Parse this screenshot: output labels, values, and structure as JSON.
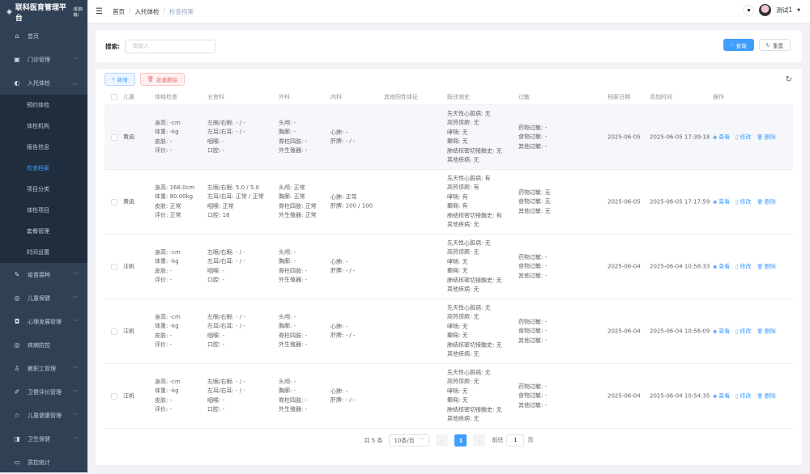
{
  "app": {
    "title": "联科医育管理平台",
    "subtitle": "(机构端)"
  },
  "sidebar": {
    "items": [
      {
        "label": "首页",
        "icon": "home-icon",
        "glyph": "⌂"
      },
      {
        "label": "门诊管理",
        "icon": "clinic-icon",
        "glyph": "▣",
        "chev": "﹀"
      }
    ],
    "open": {
      "label": "入托体检",
      "icon": "headset-icon",
      "glyph": "◐",
      "chev": "︿",
      "children": [
        "预约体检",
        "体检机构",
        "报告信息",
        "检查档案",
        "项目分类",
        "体检项目",
        "套餐管理",
        "时间设置"
      ],
      "active": 3
    },
    "rest": [
      {
        "label": "疫苗接种",
        "icon": "syringe-icon",
        "glyph": "✎",
        "chev": "﹀"
      },
      {
        "label": "儿童保健",
        "icon": "lifebuoy-icon",
        "glyph": "◎",
        "chev": "﹀"
      },
      {
        "label": "心理发展管理",
        "icon": "bag-icon",
        "glyph": "◘",
        "chev": "﹀"
      },
      {
        "label": "疾病防控",
        "icon": "shield-icon",
        "glyph": "◎"
      },
      {
        "label": "教职工管理",
        "icon": "user-icon",
        "glyph": "♙",
        "chev": "﹀"
      },
      {
        "label": "卫健评价管理",
        "icon": "pen-icon",
        "glyph": "✐",
        "chev": "﹀"
      },
      {
        "label": "儿童健康管理",
        "icon": "star-icon",
        "glyph": "☆",
        "chev": "﹀"
      },
      {
        "label": "卫生保健",
        "icon": "cup-icon",
        "glyph": "◨",
        "chev": "﹀"
      },
      {
        "label": "质控统计",
        "icon": "monitor-icon",
        "glyph": "▭"
      }
    ]
  },
  "breadcrumb": [
    "首页",
    "入托体检",
    "检查档案"
  ],
  "user": {
    "name": "测试1"
  },
  "search": {
    "label": "搜索:",
    "placeholder": "请输入",
    "query": "查询",
    "reset": "重置"
  },
  "toolbar": {
    "add": "新增",
    "batch_delete": "批量删除"
  },
  "table": {
    "headers": [
      "儿童",
      "体格检查",
      "五官科",
      "外科",
      "内科",
      "其他阳性体征",
      "既往病史",
      "过敏",
      "档案日期",
      "添加时间",
      "操作"
    ],
    "actions": [
      "查看",
      "修改",
      "删除"
    ],
    "rows": [
      {
        "child": "黄函",
        "physical": [
          "身高: -cm",
          "体重: -kg",
          "皮肤: -",
          "评价: -"
        ],
        "ent": [
          "左眼/右眼: - / -",
          "左耳/右耳: - / -",
          "咽喉: -",
          "口腔: -"
        ],
        "surgery": [
          "头颅: -",
          "胸廓: -",
          "脊柱四肢: -",
          "外生殖器: -"
        ],
        "internal": [
          "心肺: -",
          "肝脾: - / -"
        ],
        "other": "",
        "history": [
          "先天性心脏病: 无",
          "高热惊厥: 无",
          "哮喘: 无",
          "癫痫: 无",
          "肺结核密切接触史: 无",
          "其他疾病: 无"
        ],
        "allergy": [
          "药物过敏: -",
          "食物过敏: -",
          "其他过敏: -"
        ],
        "date": "2025-06-05",
        "added": "2025-06-05 17:39:18"
      },
      {
        "child": "黄函",
        "physical": [
          "身高: 168.0cm",
          "体重: 80.00kg",
          "皮肤: 正常",
          "评价: 正常"
        ],
        "ent": [
          "左眼/右眼: 5.0 / 5.0",
          "左耳/右耳: 正常 / 正常",
          "咽喉: 正常",
          "口腔: 18"
        ],
        "surgery": [
          "头颅: 正常",
          "胸廓: 正常",
          "脊柱四肢: 正常",
          "外生殖器: 正常"
        ],
        "internal": [
          "心肺: 正常",
          "肝脾: 100 / 100"
        ],
        "other": "",
        "history": [
          "先天性心脏病: 有",
          "高热惊厥: 有",
          "哮喘: 有",
          "癫痫: 有",
          "肺结核密切接触史: 有",
          "其他疾病: 无"
        ],
        "allergy": [
          "药物过敏: 无",
          "食物过敏: 无",
          "其他过敏: 无"
        ],
        "date": "2025-06-05",
        "added": "2025-06-05 17:17:59"
      },
      {
        "child": "汪帆",
        "physical": [
          "身高: -cm",
          "体重: -kg",
          "皮肤: -",
          "评价: -"
        ],
        "ent": [
          "左眼/右眼: - / -",
          "左耳/右耳: - / -",
          "咽喉: -",
          "口腔: -"
        ],
        "surgery": [
          "头颅: -",
          "胸廓: -",
          "脊柱四肢: -",
          "外生殖器: -"
        ],
        "internal": [
          "心肺: -",
          "肝脾: - / -"
        ],
        "other": "",
        "history": [
          "先天性心脏病: 无",
          "高热惊厥: 无",
          "哮喘: 无",
          "癫痫: 无",
          "肺结核密切接触史: 无",
          "其他疾病: 无"
        ],
        "allergy": [
          "药物过敏: -",
          "食物过敏: -",
          "其他过敏: -"
        ],
        "date": "2025-06-04",
        "added": "2025-06-04 10:58:33"
      },
      {
        "child": "汪帆",
        "physical": [
          "身高: -cm",
          "体重: -kg",
          "皮肤: -",
          "评价: -"
        ],
        "ent": [
          "左眼/右眼: - / -",
          "左耳/右耳: - / -",
          "咽喉: -",
          "口腔: -"
        ],
        "surgery": [
          "头颅: -",
          "胸廓: -",
          "脊柱四肢: -",
          "外生殖器: -"
        ],
        "internal": [
          "心肺: -",
          "肝脾: - / -"
        ],
        "other": "",
        "history": [
          "先天性心脏病: 无",
          "高热惊厥: 无",
          "哮喘: 无",
          "癫痫: 无",
          "肺结核密切接触史: 无",
          "其他疾病: 无"
        ],
        "allergy": [
          "药物过敏: -",
          "食物过敏: -",
          "其他过敏: -"
        ],
        "date": "2025-06-04",
        "added": "2025-06-04 10:56:09"
      },
      {
        "child": "汪帆",
        "physical": [
          "身高: -cm",
          "体重: -kg",
          "皮肤: -",
          "评价: -"
        ],
        "ent": [
          "左眼/右眼: - / -",
          "左耳/右耳: - / -",
          "咽喉: -",
          "口腔: -"
        ],
        "surgery": [
          "头颅: -",
          "胸廓: -",
          "脊柱四肢: -",
          "外生殖器: -"
        ],
        "internal": [
          "心肺: -",
          "肝脾: - / -"
        ],
        "other": "",
        "history": [
          "先天性心脏病: 无",
          "高热惊厥: 无",
          "哮喘: 无",
          "癫痫: 无",
          "肺结核密切接触史: 无",
          "其他疾病: 无"
        ],
        "allergy": [
          "药物过敏: -",
          "食物过敏: -",
          "其他过敏: -"
        ],
        "date": "2025-06-04",
        "added": "2025-06-04 10:54:35"
      }
    ]
  },
  "pagination": {
    "total": "共 5 条",
    "page_size": "10条/页",
    "current": "1",
    "goto_label": "前往",
    "goto_value": "1",
    "page_suffix": "页"
  },
  "colors": {
    "primary": "#409eff",
    "sidebar": "#304156",
    "danger": "#f56c6c"
  }
}
